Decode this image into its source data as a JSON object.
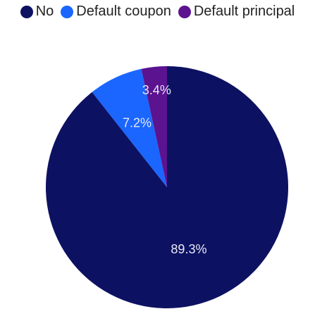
{
  "colors": {
    "no": "#0d1161",
    "default_coupon": "#1a66ff",
    "default_principal": "#5b1390"
  },
  "legend": [
    {
      "label": "No",
      "color": "#0d1161"
    },
    {
      "label": "Default coupon",
      "color": "#1a66ff"
    },
    {
      "label": "Default principal",
      "color": "#5b1390"
    }
  ],
  "chart_data": {
    "type": "pie",
    "slices": [
      {
        "label": "No",
        "value": 89.3,
        "display": "89.3%",
        "color": "#0d1161"
      },
      {
        "label": "Default coupon",
        "value": 7.2,
        "display": "7.2%",
        "color": "#1a66ff"
      },
      {
        "label": "Default principal",
        "value": 3.4,
        "display": "3.4%",
        "color": "#5b1390"
      }
    ],
    "legend_position": "top",
    "start_angle": "12 o'clock",
    "direction": "clockwise"
  }
}
